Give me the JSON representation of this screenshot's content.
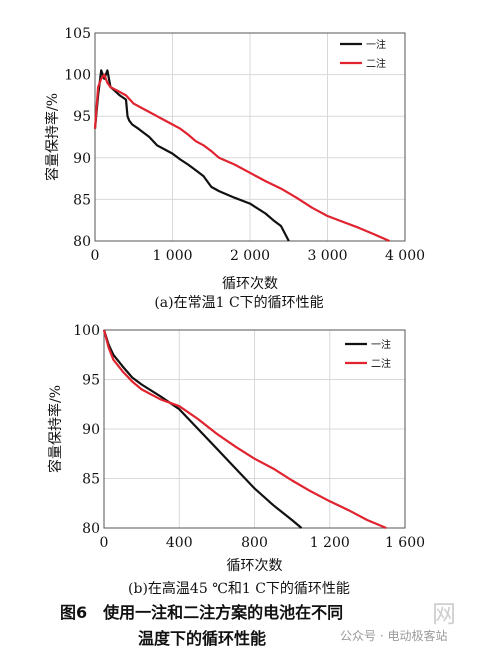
{
  "chart_data": [
    {
      "type": "line",
      "ylabel": "容量保持率/%",
      "xlabel": "循环次数",
      "caption": "(a)在常温1 C下的循环性能",
      "xlim": [
        0,
        4000
      ],
      "ylim": [
        80,
        105
      ],
      "xticks": [
        0,
        1000,
        2000,
        3000,
        4000
      ],
      "xtick_labels": [
        "0",
        "1 000",
        "2 000",
        "3 000",
        "4 000"
      ],
      "yticks": [
        80,
        85,
        90,
        95,
        100,
        105
      ],
      "ytick_labels": [
        "80",
        "85",
        "90",
        "95",
        "100",
        "105"
      ],
      "legend_position": "top-right",
      "series": [
        {
          "name": "一注",
          "color": "#111111",
          "x": [
            0,
            40,
            80,
            120,
            160,
            200,
            260,
            320,
            400,
            420,
            440,
            480,
            560,
            700,
            800,
            900,
            1000,
            1100,
            1200,
            1300,
            1400,
            1500,
            1600,
            1800,
            2000,
            2200,
            2300,
            2400,
            2500
          ],
          "y": [
            93.5,
            97.5,
            100.5,
            99.5,
            100.5,
            98.5,
            98.0,
            97.5,
            97.0,
            95.0,
            94.5,
            94.0,
            93.5,
            92.5,
            91.5,
            91.0,
            90.5,
            89.8,
            89.2,
            88.5,
            87.8,
            86.5,
            86.0,
            85.2,
            84.5,
            83.3,
            82.5,
            81.8,
            80.0
          ]
        },
        {
          "name": "二注",
          "color": "#e0232f",
          "x": [
            0,
            40,
            80,
            120,
            160,
            200,
            300,
            400,
            500,
            600,
            700,
            800,
            900,
            1000,
            1100,
            1200,
            1300,
            1400,
            1500,
            1600,
            1800,
            2000,
            2200,
            2400,
            2600,
            2800,
            3000,
            3200,
            3400,
            3600,
            3800
          ],
          "y": [
            93.5,
            98.5,
            99.5,
            100.0,
            99.0,
            98.5,
            98.0,
            97.5,
            96.5,
            96.0,
            95.5,
            95.0,
            94.5,
            94.0,
            93.5,
            92.8,
            92.0,
            91.5,
            90.8,
            90.0,
            89.2,
            88.2,
            87.2,
            86.3,
            85.2,
            84.0,
            83.0,
            82.3,
            81.6,
            80.8,
            80.0
          ]
        }
      ]
    },
    {
      "type": "line",
      "ylabel": "容量保持率/%",
      "xlabel": "循环次数",
      "caption": "(b)在高温45 ℃和1 C下的循环性能",
      "xlim": [
        0,
        1600
      ],
      "ylim": [
        80,
        100
      ],
      "xticks": [
        0,
        400,
        800,
        1200,
        1600
      ],
      "xtick_labels": [
        "0",
        "400",
        "800",
        "1 200",
        "1 600"
      ],
      "yticks": [
        80,
        85,
        90,
        95,
        100
      ],
      "ytick_labels": [
        "80",
        "85",
        "90",
        "95",
        "100"
      ],
      "legend_position": "top-right",
      "series": [
        {
          "name": "一注",
          "color": "#111111",
          "x": [
            0,
            25,
            50,
            100,
            150,
            200,
            300,
            400,
            500,
            600,
            700,
            800,
            900,
            1000,
            1050
          ],
          "y": [
            100,
            98.5,
            97.5,
            96.3,
            95.2,
            94.5,
            93.3,
            92.0,
            90.0,
            88.0,
            86.0,
            84.0,
            82.3,
            80.8,
            80.0
          ]
        },
        {
          "name": "二注",
          "color": "#e0232f",
          "x": [
            0,
            25,
            50,
            100,
            150,
            200,
            300,
            400,
            500,
            600,
            700,
            800,
            900,
            1000,
            1100,
            1200,
            1300,
            1400,
            1500
          ],
          "y": [
            100,
            98.2,
            97.0,
            95.8,
            94.8,
            94.0,
            93.0,
            92.3,
            91.0,
            89.5,
            88.2,
            87.0,
            86.0,
            84.8,
            83.7,
            82.7,
            81.8,
            80.8,
            80.0
          ]
        }
      ]
    }
  ],
  "figure_caption": "图6　使用一注和二注方案的电池在不同",
  "figure_caption_line2": "温度下的循环性能",
  "watermark": {
    "text": "公众号 · 电动极客站",
    "big": "网"
  }
}
